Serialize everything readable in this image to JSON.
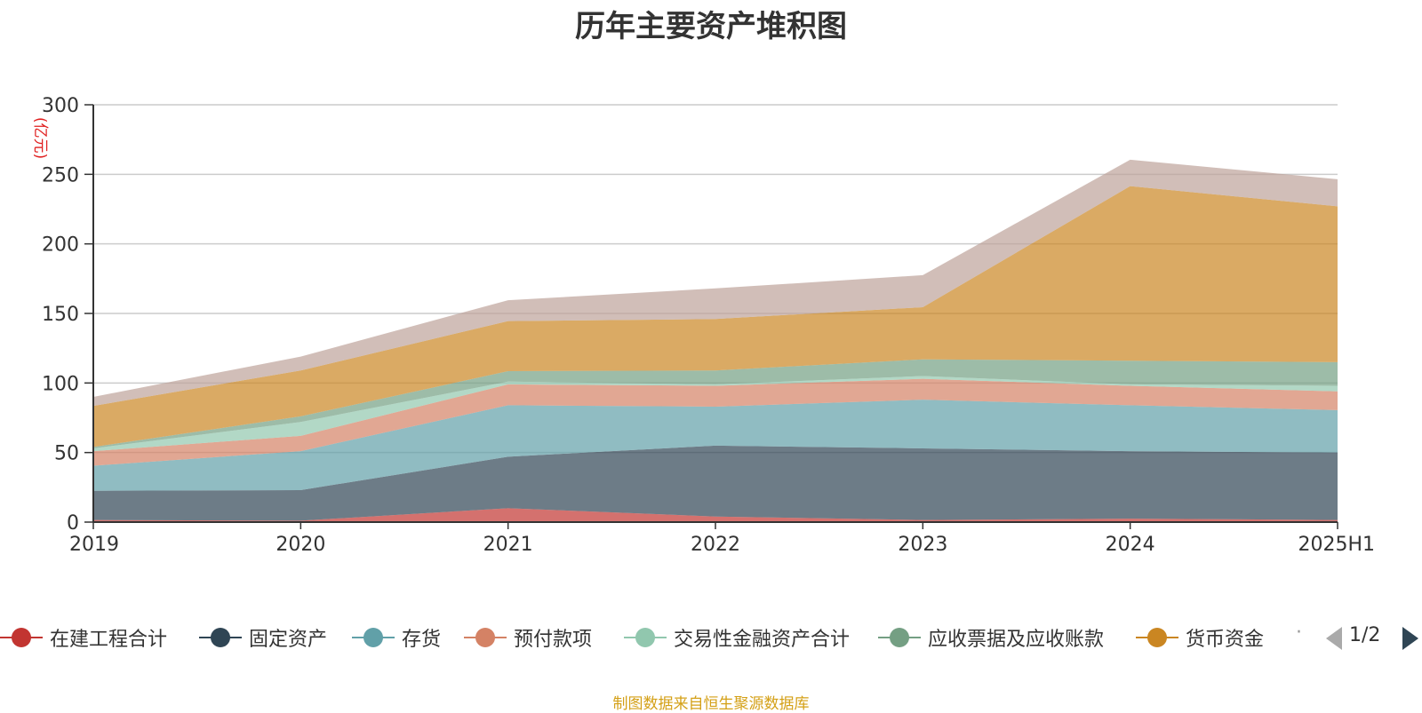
{
  "chart_data": {
    "type": "area",
    "stacked": true,
    "title": "历年主要资产堆积图",
    "ylabel": "(亿元)",
    "ylim": [
      0,
      300
    ],
    "yticks": [
      0,
      50,
      100,
      150,
      200,
      250,
      300
    ],
    "categories": [
      "2019",
      "2020",
      "2021",
      "2022",
      "2023",
      "2024",
      "2025H1"
    ],
    "grid": true,
    "legend_position": "bottom",
    "series": [
      {
        "name": "在建工程合计",
        "color": "#c23531",
        "values": [
          1.5,
          1.0,
          10.0,
          4.0,
          1.5,
          2.5,
          1.5
        ]
      },
      {
        "name": "固定资产",
        "color": "#2f4554",
        "values": [
          21.0,
          22.0,
          37.0,
          51.0,
          51.5,
          48.5,
          48.5
        ]
      },
      {
        "name": "存货",
        "color": "#61a0a8",
        "values": [
          18.0,
          28.0,
          37.0,
          28.0,
          35.0,
          33.0,
          30.5
        ]
      },
      {
        "name": "预付款项",
        "color": "#d48265",
        "values": [
          10.5,
          11.0,
          15.0,
          15.0,
          15.0,
          14.0,
          13.5
        ]
      },
      {
        "name": "交易性金融资产合计",
        "color": "#91c7ae",
        "values": [
          2.0,
          10.0,
          2.0,
          1.0,
          2.0,
          1.0,
          4.0
        ]
      },
      {
        "name": "应收票据及应收账款",
        "color": "#749f83",
        "values": [
          1.0,
          4.0,
          7.5,
          10.0,
          12.0,
          17.0,
          17.0
        ]
      },
      {
        "name": "货币资金",
        "color": "#ca8622",
        "values": [
          29.5,
          33.0,
          36.0,
          37.0,
          37.5,
          125.5,
          112.0
        ]
      },
      {
        "name": "",
        "color": "#bda29a",
        "values": [
          6.5,
          10.0,
          15.0,
          22.0,
          23.0,
          19.0,
          19.5
        ]
      }
    ]
  },
  "legend": {
    "items": [
      {
        "label": "在建工程合计",
        "color": "#c23531"
      },
      {
        "label": "固定资产",
        "color": "#2f4554"
      },
      {
        "label": "存货",
        "color": "#61a0a8"
      },
      {
        "label": "预付款项",
        "color": "#d48265"
      },
      {
        "label": "交易性金融资产合计",
        "color": "#91c7ae"
      },
      {
        "label": "应收票据及应收账款",
        "color": "#749f83"
      },
      {
        "label": "货币资金",
        "color": "#ca8622"
      }
    ],
    "overflow": "·",
    "page_indicator": "1/2"
  },
  "source_note": "制图数据来自恒生聚源数据库"
}
